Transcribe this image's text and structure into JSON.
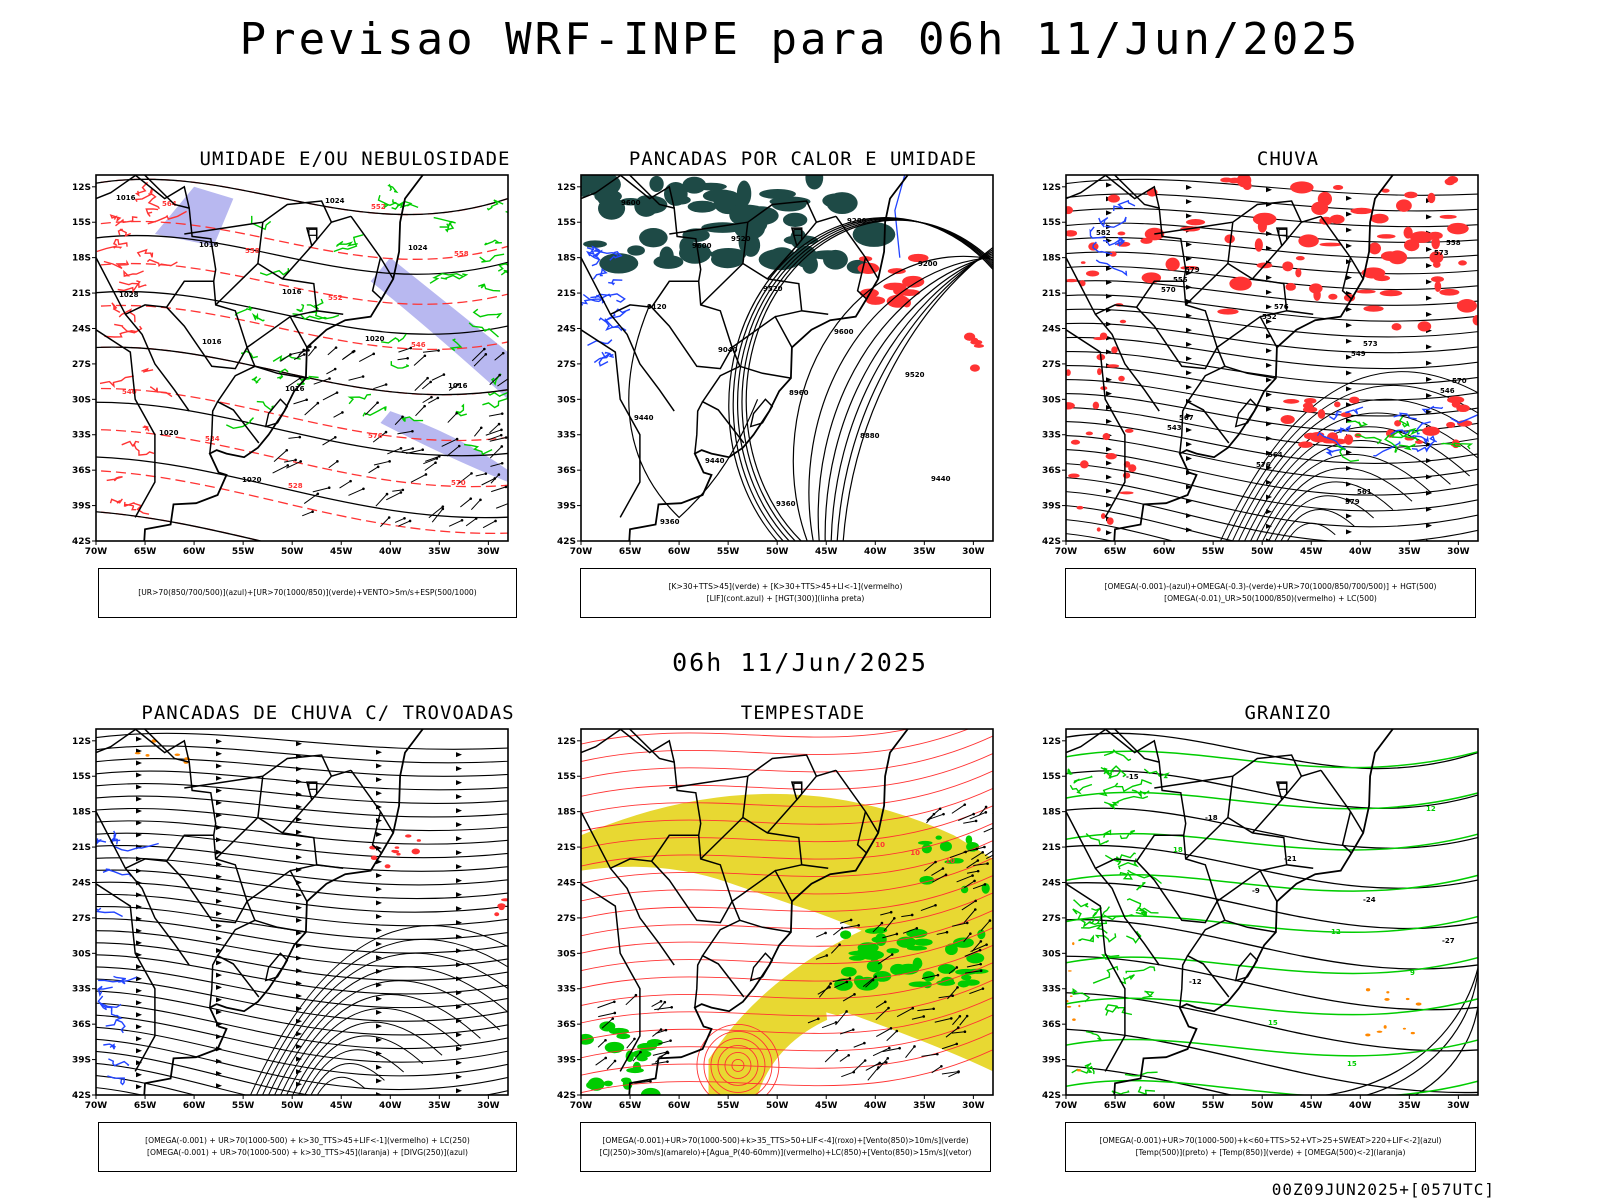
{
  "header": {
    "title": "Previsao WRF-INPE  para 06h 11/Jun/2025"
  },
  "middle_time": "06h 11/Jun/2025",
  "footer": "00Z09JUN2025+[057UTC]",
  "axes": {
    "lat_labels": [
      "12S",
      "15S",
      "18S",
      "21S",
      "24S",
      "27S",
      "30S",
      "33S",
      "36S",
      "39S",
      "42S"
    ],
    "lon_labels": [
      "70W",
      "65W",
      "60W",
      "55W",
      "50W",
      "45W",
      "40W",
      "35W",
      "30W"
    ]
  },
  "colors": {
    "red": "#ff3333",
    "green": "#00cc00",
    "blue": "#2244ff",
    "lavender": "#b8b8f0",
    "yellow": "#e8d832",
    "darkteal": "#1e4a46",
    "orange": "#ff8800"
  },
  "panels": [
    {
      "id": "umidade",
      "title": "UMIDADE E/OU NEBULOSIDADE",
      "legend": [
        "[UR>70(850/700/500)](azul)+[UR>70(1000/850)](verde)+VENTO>5m/s+ESP(500/1000)"
      ],
      "contour_labels": [
        "1016",
        "1016",
        "1016",
        "1020",
        "1016",
        "1020",
        "1020",
        "1024",
        "1024",
        "1028",
        "1016",
        "1016",
        "576",
        "570",
        "564",
        "558",
        "552",
        "546",
        "540",
        "534",
        "528",
        "552",
        "558"
      ]
    },
    {
      "id": "pancadas-calor",
      "title": "PANCADAS POR CALOR E UMIDADE",
      "legend": [
        "[K>30+TTS>45](verde) + [K>30+TTS>45+LI<-1](vermelho)",
        "[LIF](cont.azul) + [HGT(300)](linha preta)"
      ],
      "contour_labels": [
        "9600",
        "9600",
        "9520",
        "9600",
        "9520",
        "9440",
        "9440",
        "9360",
        "9280",
        "9200",
        "9120",
        "9040",
        "8960",
        "8880",
        "9440",
        "9360",
        "9520"
      ]
    },
    {
      "id": "chuva",
      "title": "CHUVA",
      "legend": [
        "[OMEGA(-0.001)-(azul)+OMEGA(-0.3)-(verde)+UR>70(1000/850/700/500)] + HGT(500)",
        "[OMEGA(-0.01)_UR>50(1000/850)(vermelho) + LC(500)"
      ],
      "contour_labels": [
        "582",
        "579",
        "576",
        "573",
        "570",
        "567",
        "564",
        "561",
        "558",
        "555",
        "552",
        "549",
        "546",
        "543",
        "576",
        "579",
        "573",
        "570"
      ]
    },
    {
      "id": "pancadas-trovoadas",
      "title": "PANCADAS DE CHUVA C/ TROVOADAS",
      "legend": [
        "[OMEGA(-0.001) + UR>70(1000-500) + k>30_TTS>45+LIF<-1](vermelho) + LC(250)",
        "[OMEGA(-0.001) + UR>70(1000-500) + k>30_TTS>45](laranja) + [DIVG(250)](azul)"
      ],
      "contour_labels": []
    },
    {
      "id": "tempestade",
      "title": "TEMPESTADE",
      "legend": [
        "[OMEGA(-0.001)+UR>70(1000-500)+k>35_TTS>50+LIF<-4](roxo)+[Vento(850)>10m/s](verde)",
        "[CJ(250)>30m/s](amarelo)+[Agua_P(40-60mm)](vermelho)+LC(850)+[Vento(850)>15m/s](vetor)"
      ],
      "contour_labels": [
        "10",
        "10",
        "10"
      ]
    },
    {
      "id": "granizo",
      "title": "GRANIZO",
      "legend": [
        "[OMEGA(-0.001)+UR>70(1000-500)+k<60+TTS>52+VT>25+SWEAT>220+LIF<-2](azul)",
        "[Temp(500)](preto) + [Temp(850)](verde) + [OMEGA(500)<-2](laranja)"
      ],
      "contour_labels": [
        "-15",
        "-18",
        "-21",
        "-24",
        "-27",
        "-12",
        "15",
        "15",
        "12",
        "18",
        "-9",
        "12",
        "9"
      ]
    }
  ]
}
